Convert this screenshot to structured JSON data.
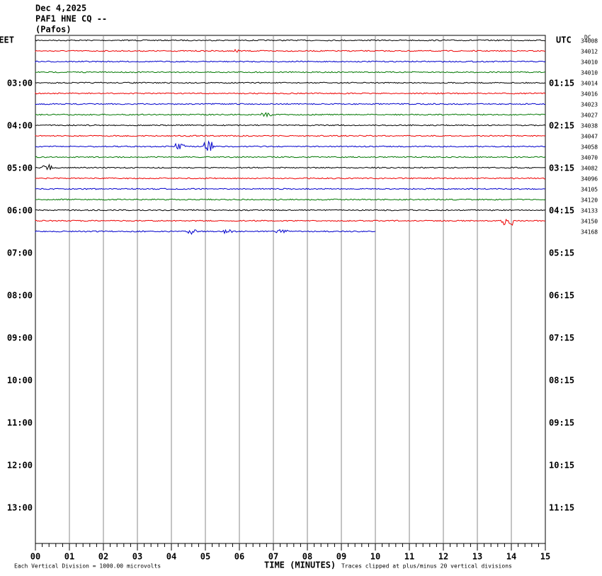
{
  "header": {
    "date": "Dec 4,2025",
    "station": "PAF1 HNE CQ --",
    "location": "(Pafos)"
  },
  "left_timezone": "EET",
  "right_timezone": "UTC",
  "dc_label": "DC",
  "left_hours": [
    "03:00",
    "04:00",
    "05:00",
    "06:00",
    "07:00",
    "08:00",
    "09:00",
    "10:00",
    "11:00",
    "12:00",
    "13:00"
  ],
  "right_hours": [
    "01:15",
    "02:15",
    "03:15",
    "04:15",
    "05:15",
    "06:15",
    "07:15",
    "08:15",
    "09:15",
    "10:15",
    "11:15"
  ],
  "dc_values": [
    "34008",
    "34012",
    "34010",
    "34010",
    "34014",
    "34016",
    "34023",
    "34027",
    "34038",
    "34047",
    "34058",
    "34070",
    "34082",
    "34096",
    "34105",
    "34120",
    "34133",
    "34150",
    "34168"
  ],
  "x_labels": [
    "00",
    "01",
    "02",
    "03",
    "04",
    "05",
    "06",
    "07",
    "08",
    "09",
    "10",
    "11",
    "12",
    "13",
    "14",
    "15"
  ],
  "footer": {
    "scale": "Each Vertical Division = 1000.00 microvolts",
    "axis_title": "TIME (MINUTES)",
    "clip_note": "Traces clipped at plus/minus 20 vertical divisions"
  }
}
